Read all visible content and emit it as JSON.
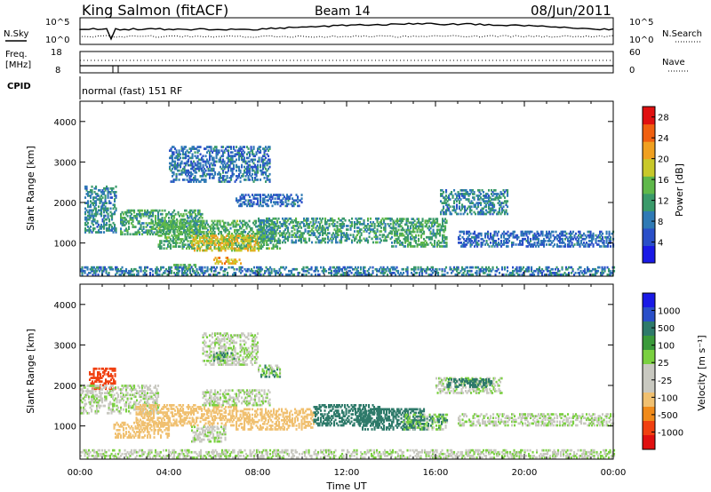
{
  "header": {
    "station": "King Salmon (fitACF)",
    "beam": "Beam 14",
    "date": "08/Jun/2011"
  },
  "status_panels": {
    "nsky": {
      "label": "N.Sky",
      "tick_top": "10^5",
      "tick_bottom": "10^0"
    },
    "nsearch": {
      "label": "N.Search",
      "tick_top": "10^5",
      "tick_bottom": "10^0"
    },
    "freq": {
      "label_line1": "Freq.",
      "label_line2": "[MHz]",
      "tick_top": "18",
      "tick_bottom": "8"
    },
    "nave": {
      "label": "Nave",
      "tick_top": "60",
      "tick_bottom": "0"
    },
    "cpid": {
      "label": "CPID",
      "value": "normal (fast) 151 RF"
    }
  },
  "colors": {
    "power_scale": [
      "#1a1ae6",
      "#2a4fc8",
      "#2f7ab5",
      "#3a9a6a",
      "#5fb84a",
      "#c8c82a",
      "#f0a020",
      "#f06010",
      "#e01010"
    ],
    "velocity_scale": [
      "#e01010",
      "#f04010",
      "#f08a1a",
      "#f0c070",
      "#c8c8c0",
      "#c8c8c0",
      "#7ad040",
      "#3a9a3a",
      "#2e7a6a",
      "#2a4fc8",
      "#1a1ae6"
    ]
  },
  "chart_data": [
    {
      "type": "heatmap",
      "name": "power-panel",
      "xlabel": "Time UT",
      "ylabel": "Slant Range [km]",
      "x_ticks": [
        "00:00",
        "04:00",
        "08:00",
        "12:00",
        "16:00",
        "20:00",
        "00:00"
      ],
      "x_range_hours": [
        0,
        24
      ],
      "y_ticks": [
        1000,
        2000,
        3000,
        4000
      ],
      "y_range_km": [
        180,
        4500
      ],
      "colorbar_label": "Power [dB]",
      "colorbar_ticks": [
        4,
        8,
        12,
        16,
        20,
        24,
        28
      ],
      "colorbar_range": [
        0,
        30
      ],
      "regions": [
        {
          "t0": 0.2,
          "t1": 1.6,
          "r0": 1250,
          "r1": 2400,
          "level": 9
        },
        {
          "t0": 1.8,
          "t1": 5.5,
          "r0": 1200,
          "r1": 1800,
          "level": 12
        },
        {
          "t0": 3.5,
          "t1": 9.0,
          "r0": 850,
          "r1": 1550,
          "level": 13
        },
        {
          "t0": 5.0,
          "t1": 8.0,
          "r0": 800,
          "r1": 1200,
          "level": 20
        },
        {
          "t0": 6.0,
          "t1": 7.2,
          "r0": 480,
          "r1": 640,
          "level": 22
        },
        {
          "t0": 4.2,
          "t1": 5.2,
          "r0": 350,
          "r1": 450,
          "level": 14
        },
        {
          "t0": 8.0,
          "t1": 14.0,
          "r0": 1000,
          "r1": 1600,
          "level": 11
        },
        {
          "t0": 14.0,
          "t1": 16.5,
          "r0": 900,
          "r1": 1600,
          "level": 12
        },
        {
          "t0": 16.2,
          "t1": 19.2,
          "r0": 1700,
          "r1": 2300,
          "level": 9
        },
        {
          "t0": 4.0,
          "t1": 8.5,
          "r0": 2500,
          "r1": 3400,
          "level": 7
        },
        {
          "t0": 7.0,
          "t1": 10.0,
          "r0": 1900,
          "r1": 2200,
          "level": 6
        },
        {
          "t0": 17.0,
          "t1": 24.0,
          "r0": 900,
          "r1": 1300,
          "level": 6
        },
        {
          "t0": 0.0,
          "t1": 24.0,
          "r0": 200,
          "r1": 420,
          "level": 8
        }
      ]
    },
    {
      "type": "heatmap",
      "name": "velocity-panel",
      "xlabel": "Time UT",
      "ylabel": "Slant Range [km]",
      "x_ticks": [
        "00:00",
        "04:00",
        "08:00",
        "12:00",
        "16:00",
        "20:00",
        "00:00"
      ],
      "x_range_hours": [
        0,
        24
      ],
      "y_ticks": [
        1000,
        2000,
        3000,
        4000
      ],
      "y_range_km": [
        180,
        4500
      ],
      "colorbar_label": "Velocity [m s⁻¹]",
      "colorbar_ticks": [
        "1000",
        "500",
        "100",
        "25",
        "-25",
        "-100",
        "-500",
        "-1000"
      ],
      "regions": [
        {
          "t0": 0.4,
          "t1": 1.6,
          "r0": 1900,
          "r1": 2400,
          "vel": -700
        },
        {
          "t0": 0.0,
          "t1": 3.5,
          "r0": 1300,
          "r1": 2000,
          "vel": 0
        },
        {
          "t0": 2.5,
          "t1": 7.0,
          "r0": 1000,
          "r1": 1500,
          "vel": -300
        },
        {
          "t0": 5.5,
          "t1": 8.5,
          "r0": 1500,
          "r1": 1900,
          "vel": 0
        },
        {
          "t0": 5.0,
          "t1": 6.5,
          "r0": 600,
          "r1": 1000,
          "vel": 0
        },
        {
          "t0": 1.5,
          "t1": 4.0,
          "r0": 700,
          "r1": 1100,
          "vel": -300
        },
        {
          "t0": 7.0,
          "t1": 10.5,
          "r0": 900,
          "r1": 1400,
          "vel": -300
        },
        {
          "t0": 10.5,
          "t1": 13.5,
          "r0": 1000,
          "r1": 1500,
          "vel": 200
        },
        {
          "t0": 12.5,
          "t1": 15.5,
          "r0": 900,
          "r1": 1400,
          "vel": 400
        },
        {
          "t0": 14.5,
          "t1": 16.5,
          "r0": 900,
          "r1": 1300,
          "vel": 80
        },
        {
          "t0": 16.0,
          "t1": 19.0,
          "r0": 1800,
          "r1": 2200,
          "vel": 0
        },
        {
          "t0": 16.5,
          "t1": 18.5,
          "r0": 1950,
          "r1": 2150,
          "vel": 200
        },
        {
          "t0": 5.5,
          "t1": 8.0,
          "r0": 2500,
          "r1": 3300,
          "vel": 0
        },
        {
          "t0": 6.0,
          "t1": 7.0,
          "r0": 2600,
          "r1": 2800,
          "vel": 80
        },
        {
          "t0": 8.0,
          "t1": 9.0,
          "r0": 2200,
          "r1": 2500,
          "vel": 80
        },
        {
          "t0": 0.0,
          "t1": 24.0,
          "r0": 200,
          "r1": 420,
          "vel": 0
        },
        {
          "t0": 17.0,
          "t1": 24.0,
          "r0": 1000,
          "r1": 1300,
          "vel": 0
        }
      ]
    }
  ]
}
